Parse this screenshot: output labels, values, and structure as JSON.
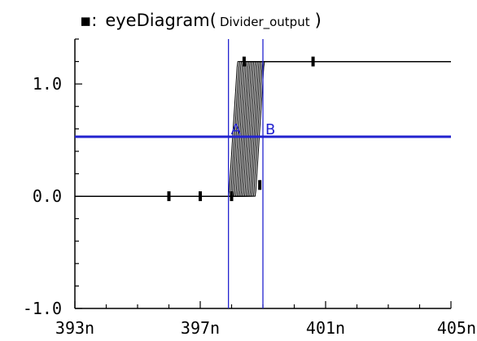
{
  "chart_data": {
    "type": "line",
    "title_marker": "▪:",
    "title_func": "eyeDiagram(",
    "title_signal": "Divider_output",
    "title_close": ")",
    "xlim": [
      393,
      405
    ],
    "ylim": [
      -1.0,
      1.4
    ],
    "x_ticks": [
      {
        "value": 393,
        "label": "393n"
      },
      {
        "value": 397,
        "label": "397n"
      },
      {
        "value": 401,
        "label": "401n"
      },
      {
        "value": 405,
        "label": "405n"
      }
    ],
    "y_ticks": [
      {
        "value": 1.0,
        "label": "1.0"
      },
      {
        "value": 0.0,
        "label": "0.0"
      },
      {
        "value": -1.0,
        "label": "-1.0"
      }
    ],
    "signal": {
      "low": 0.0,
      "high": 1.2,
      "x_start": 393,
      "x_end": 405,
      "trace_count": 16,
      "rise_start_first": 397.9,
      "rise_start_last": 398.75,
      "rise_time": 0.3,
      "color": "#000000",
      "fill_color": "#d8d8d8"
    },
    "markers": [
      {
        "x": 396.0,
        "y": 0.0
      },
      {
        "x": 397.0,
        "y": 0.0
      },
      {
        "x": 398.0,
        "y": 0.0
      },
      {
        "x": 398.9,
        "y": 0.1
      },
      {
        "x": 398.4,
        "y": 1.2
      },
      {
        "x": 400.6,
        "y": 1.2
      }
    ],
    "cursors": {
      "color": "#2323cf",
      "vertical": [
        {
          "label": "A",
          "x": 397.9
        },
        {
          "label": "B",
          "x": 399.0
        }
      ],
      "horizontal": {
        "y": 0.53
      }
    }
  }
}
